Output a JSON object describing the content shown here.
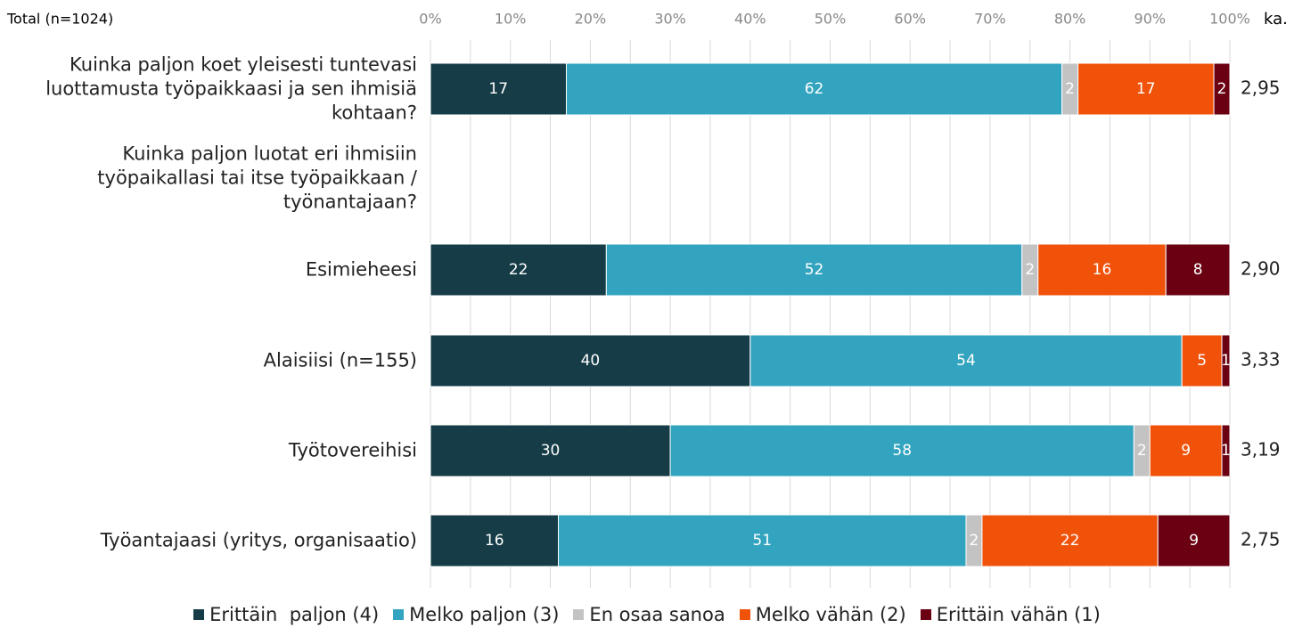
{
  "chart_data": {
    "type": "stacked_bar_horizontal",
    "title": "Total (n=1024)",
    "average_header": "ka.",
    "categories": [
      "Kuinka paljon koet yleisesti tuntevasi luottamusta työpaikkaasi ja sen ihmisiä kohtaan?",
      "Kuinka paljon luotat eri ihmisiin työpaikallasi tai itse työpaikkaan / työnantajaan?",
      "Esimieheesi",
      "Alaisiisi (n=155)",
      "Työtovereihisi",
      "Työantajaasi (yritys, organisaatio)"
    ],
    "series": [
      {
        "name": "Erittäin  paljon (4)",
        "color": "#163d47",
        "values": [
          17,
          null,
          22,
          40,
          30,
          16
        ]
      },
      {
        "name": "Melko paljon (3)",
        "color": "#33a4bf",
        "values": [
          62,
          null,
          52,
          54,
          58,
          51
        ]
      },
      {
        "name": "En osaa sanoa",
        "color": "#c3c3c3",
        "values": [
          2,
          null,
          2,
          null,
          2,
          2
        ]
      },
      {
        "name": "Melko vähän (2)",
        "color": "#f0520a",
        "values": [
          17,
          null,
          16,
          5,
          9,
          22
        ]
      },
      {
        "name": "Erittäin vähän (1)",
        "color": "#6a0012",
        "values": [
          2,
          null,
          8,
          1,
          1,
          9
        ]
      }
    ],
    "averages": [
      2.95,
      null,
      2.9,
      3.33,
      3.19,
      2.75
    ],
    "average_labels": [
      "2,95",
      null,
      "2,90",
      "3,33",
      "3,19",
      "2,75"
    ],
    "xlim": [
      0,
      100
    ],
    "xticks": [
      {
        "value": 0,
        "label": "0%"
      },
      {
        "value": 10,
        "label": "10%"
      },
      {
        "value": 20,
        "label": "20%"
      },
      {
        "value": 30,
        "label": "30%"
      },
      {
        "value": 40,
        "label": "40%"
      },
      {
        "value": 50,
        "label": "50%"
      },
      {
        "value": 60,
        "label": "60%"
      },
      {
        "value": 70,
        "label": "70%"
      },
      {
        "value": 80,
        "label": "80%"
      },
      {
        "value": 90,
        "label": "90%"
      },
      {
        "value": 100,
        "label": "100%"
      }
    ],
    "xminorticks": [
      5,
      15,
      25,
      35,
      45,
      55,
      65,
      75,
      85,
      95
    ],
    "grid": true,
    "legend": "bottom"
  }
}
